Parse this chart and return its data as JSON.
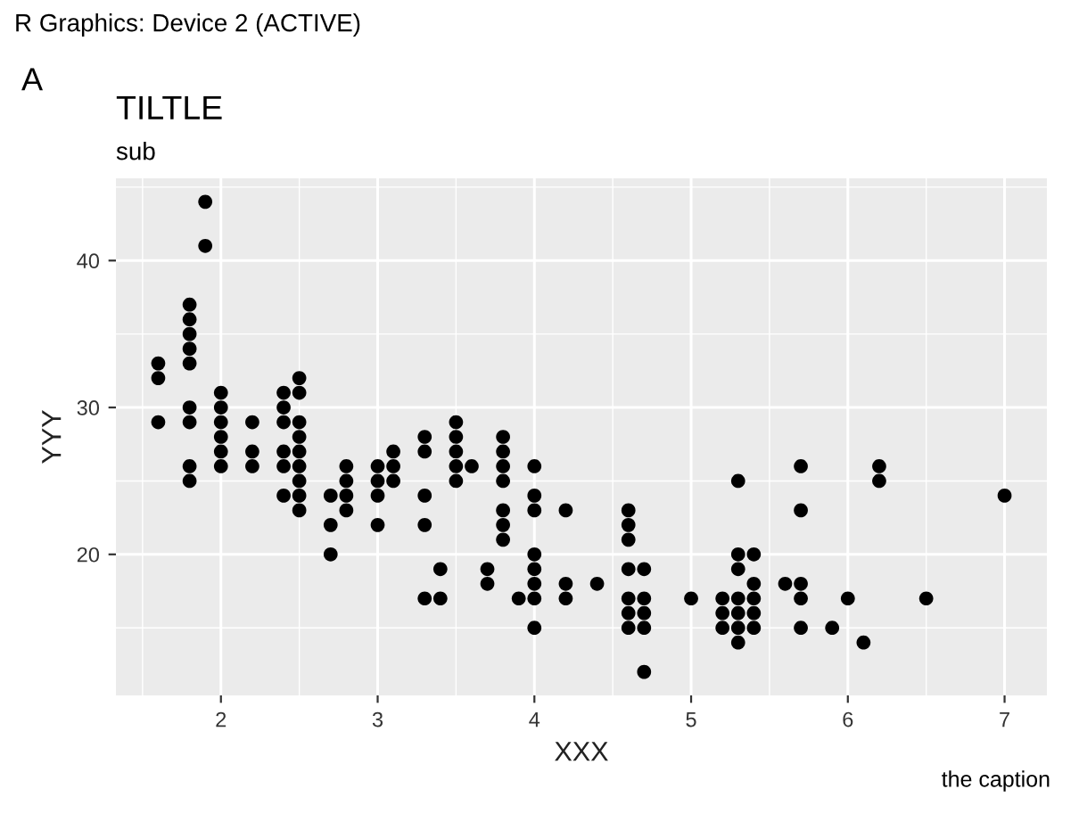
{
  "chart_data": {
    "type": "scatter",
    "title": "TILTLE",
    "subtitle": "sub",
    "xlabel": "XXX",
    "ylabel": "YYY",
    "annotations": [
      "R Graphics: Device 2 (ACTIVE)",
      "A",
      "the caption"
    ],
    "x": [
      1.6,
      1.6,
      1.6,
      1.8,
      1.8,
      1.8,
      1.8,
      1.8,
      1.8,
      1.8,
      1.8,
      1.8,
      1.9,
      1.9,
      2.0,
      2.0,
      2.0,
      2.0,
      2.0,
      2.0,
      2.2,
      2.2,
      2.2,
      2.4,
      2.4,
      2.4,
      2.4,
      2.4,
      2.4,
      2.5,
      2.5,
      2.5,
      2.5,
      2.5,
      2.5,
      2.5,
      2.5,
      2.5,
      2.7,
      2.7,
      2.7,
      2.8,
      2.8,
      2.8,
      2.8,
      3.0,
      3.0,
      3.0,
      3.0,
      3.1,
      3.1,
      3.1,
      3.3,
      3.3,
      3.3,
      3.3,
      3.3,
      3.4,
      3.4,
      3.5,
      3.5,
      3.5,
      3.5,
      3.5,
      3.6,
      3.7,
      3.7,
      3.8,
      3.8,
      3.8,
      3.8,
      3.8,
      3.8,
      3.8,
      3.9,
      4.0,
      4.0,
      4.0,
      4.0,
      4.0,
      4.0,
      4.0,
      4.0,
      4.2,
      4.2,
      4.2,
      4.4,
      4.6,
      4.6,
      4.6,
      4.6,
      4.6,
      4.6,
      4.6,
      4.7,
      4.7,
      4.7,
      4.7,
      4.7,
      5.0,
      5.2,
      5.2,
      5.2,
      5.3,
      5.3,
      5.3,
      5.3,
      5.3,
      5.3,
      5.3,
      5.4,
      5.4,
      5.4,
      5.4,
      5.4,
      5.6,
      5.7,
      5.7,
      5.7,
      5.7,
      5.7,
      5.9,
      6.0,
      6.1,
      6.2,
      6.2,
      6.5,
      7.0
    ],
    "values": [
      29,
      32,
      33,
      25,
      26,
      29,
      30,
      33,
      34,
      35,
      36,
      37,
      41,
      44,
      26,
      27,
      28,
      29,
      30,
      31,
      26,
      27,
      29,
      24,
      26,
      27,
      29,
      30,
      31,
      23,
      24,
      25,
      26,
      27,
      28,
      29,
      31,
      32,
      20,
      22,
      24,
      23,
      24,
      25,
      26,
      22,
      24,
      25,
      26,
      25,
      26,
      27,
      17,
      22,
      24,
      27,
      28,
      17,
      19,
      25,
      26,
      27,
      28,
      29,
      26,
      18,
      19,
      21,
      22,
      23,
      25,
      26,
      27,
      28,
      17,
      15,
      17,
      18,
      19,
      20,
      23,
      24,
      26,
      17,
      18,
      23,
      18,
      15,
      16,
      17,
      19,
      21,
      22,
      23,
      12,
      15,
      16,
      17,
      19,
      17,
      15,
      16,
      17,
      14,
      15,
      16,
      17,
      19,
      20,
      25,
      15,
      16,
      17,
      18,
      20,
      18,
      15,
      17,
      18,
      23,
      26,
      15,
      17,
      14,
      25,
      26,
      17,
      24
    ],
    "color": "#000000",
    "marker": "circle",
    "xlim": [
      1.33,
      7.27
    ],
    "ylim": [
      10.4,
      45.6
    ],
    "xticks": [
      2,
      3,
      4,
      5,
      6,
      7
    ],
    "yticks": [
      20,
      30,
      40
    ],
    "grid": true
  }
}
